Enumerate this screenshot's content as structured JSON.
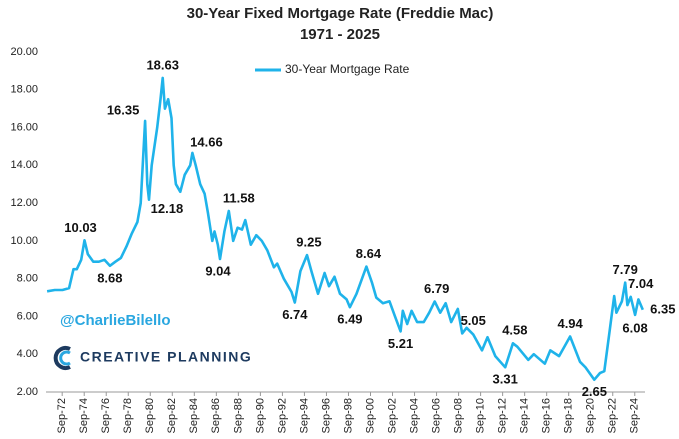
{
  "chart_data": {
    "type": "line",
    "title": "30-Year Fixed Mortgage Rate (Freddie Mac)",
    "subtitle": "1971 - 2025",
    "watermark": "@CharlieBilello",
    "logo_text": "CREATIVE PLANNING",
    "x": [
      1971.3,
      1972.0,
      1972.7,
      1973.3,
      1973.7,
      1974.0,
      1974.4,
      1974.7,
      1975.0,
      1975.5,
      1976.0,
      1976.5,
      1977.0,
      1977.5,
      1978.0,
      1978.5,
      1979.0,
      1979.5,
      1979.8,
      1980.2,
      1980.4,
      1980.55,
      1980.8,
      1981.0,
      1981.3,
      1981.6,
      1981.8,
      1982.0,
      1982.3,
      1982.6,
      1982.8,
      1983.0,
      1983.4,
      1983.8,
      1984.3,
      1984.5,
      1984.8,
      1985.2,
      1985.6,
      1985.9,
      1986.3,
      1986.5,
      1986.8,
      1987.0,
      1987.4,
      1987.8,
      1988.2,
      1988.6,
      1989.0,
      1989.3,
      1989.8,
      1990.3,
      1990.8,
      1991.3,
      1991.9,
      1992.2,
      1992.8,
      1993.5,
      1993.8,
      1994.3,
      1994.9,
      1995.3,
      1995.9,
      1996.5,
      1996.9,
      1997.4,
      1997.9,
      1998.5,
      1998.8,
      1999.4,
      2000.3,
      2000.8,
      2001.2,
      2001.8,
      2002.4,
      2002.9,
      2003.4,
      2003.6,
      2004.0,
      2004.4,
      2004.9,
      2005.5,
      2006.0,
      2006.5,
      2007.0,
      2007.5,
      2008.0,
      2008.6,
      2009.0,
      2009.4,
      2010.0,
      2010.8,
      2011.3,
      2012.0,
      2012.9,
      2013.6,
      2014.0,
      2015.0,
      2015.5,
      2016.5,
      2017.0,
      2017.8,
      2018.8,
      2019.7,
      2020.2,
      2021.0,
      2021.5,
      2021.9,
      2022.4,
      2022.8,
      2023.0,
      2023.5,
      2023.8,
      2024.0,
      2024.3,
      2024.7,
      2025.0,
      2025.4
    ],
    "series": [
      {
        "name": "30-Year Mortgage Rate",
        "color": "#1fb3ea",
        "values": [
          7.33,
          7.4,
          7.4,
          7.5,
          8.5,
          8.5,
          9.0,
          10.03,
          9.3,
          8.9,
          8.9,
          9.0,
          8.68,
          8.9,
          9.1,
          9.7,
          10.4,
          11.0,
          12.0,
          16.35,
          13.0,
          12.18,
          14.0,
          14.8,
          16.0,
          17.5,
          18.63,
          17.0,
          17.5,
          16.5,
          14.0,
          13.0,
          12.6,
          13.5,
          14.0,
          14.66,
          14.0,
          13.0,
          12.5,
          11.5,
          10.0,
          10.5,
          9.8,
          9.04,
          10.5,
          11.58,
          10.0,
          10.7,
          10.6,
          11.1,
          9.8,
          10.3,
          10.0,
          9.5,
          8.6,
          8.8,
          8.0,
          7.3,
          6.74,
          8.4,
          9.25,
          8.4,
          7.2,
          8.3,
          7.6,
          8.1,
          7.2,
          6.9,
          6.49,
          7.2,
          8.64,
          7.8,
          7.0,
          6.7,
          6.8,
          6.0,
          5.21,
          6.3,
          5.6,
          6.3,
          5.7,
          5.7,
          6.2,
          6.79,
          6.2,
          6.7,
          5.7,
          6.4,
          5.1,
          5.4,
          5.05,
          4.2,
          4.9,
          3.9,
          3.31,
          4.58,
          4.4,
          3.7,
          4.0,
          3.5,
          4.2,
          3.9,
          4.94,
          3.6,
          3.3,
          2.65,
          3.0,
          3.1,
          5.3,
          7.08,
          6.2,
          6.8,
          7.79,
          6.6,
          7.04,
          6.08,
          6.9,
          6.35
        ]
      }
    ],
    "annotations": [
      {
        "x": 1974.7,
        "value": 10.03
      },
      {
        "x": 1977.0,
        "value": 8.68
      },
      {
        "x": 1980.2,
        "value": 16.35
      },
      {
        "x": 1980.55,
        "value": 12.18
      },
      {
        "x": 1981.8,
        "value": 18.63
      },
      {
        "x": 1984.5,
        "value": 14.66
      },
      {
        "x": 1987.0,
        "value": 9.04
      },
      {
        "x": 1987.8,
        "value": 11.58
      },
      {
        "x": 1993.8,
        "value": 6.74
      },
      {
        "x": 1994.9,
        "value": 9.25
      },
      {
        "x": 1998.8,
        "value": 6.49
      },
      {
        "x": 2000.3,
        "value": 8.64
      },
      {
        "x": 2003.4,
        "value": 5.21
      },
      {
        "x": 2006.5,
        "value": 6.79
      },
      {
        "x": 2010.0,
        "value": 5.05
      },
      {
        "x": 2012.9,
        "value": 3.31
      },
      {
        "x": 2013.6,
        "value": 4.58
      },
      {
        "x": 2018.8,
        "value": 4.94
      },
      {
        "x": 2021.0,
        "value": 2.65
      },
      {
        "x": 2023.8,
        "value": 7.79
      },
      {
        "x": 2024.3,
        "value": 7.04
      },
      {
        "x": 2024.7,
        "value": 6.08
      },
      {
        "x": 2025.4,
        "value": 6.35
      }
    ],
    "xlim": [
      1971.2,
      2025.6
    ],
    "ylim": [
      2,
      20
    ],
    "yticks": [
      {
        "value": 2,
        "label": "2.00"
      },
      {
        "value": 4,
        "label": "4.00"
      },
      {
        "value": 6,
        "label": "6.00"
      },
      {
        "value": 8,
        "label": "8.00"
      },
      {
        "value": 10,
        "label": "10.00"
      },
      {
        "value": 12,
        "label": "12.00"
      },
      {
        "value": 14,
        "label": "14.00"
      },
      {
        "value": 16,
        "label": "16.00"
      },
      {
        "value": 18,
        "label": "18.00"
      },
      {
        "value": 20,
        "label": "20.00"
      }
    ],
    "xticks": [
      {
        "value": 1972.67,
        "label": "Sep-72"
      },
      {
        "value": 1974.67,
        "label": "Sep-74"
      },
      {
        "value": 1976.67,
        "label": "Sep-76"
      },
      {
        "value": 1978.67,
        "label": "Sep-78"
      },
      {
        "value": 1980.67,
        "label": "Sep-80"
      },
      {
        "value": 1982.67,
        "label": "Sep-82"
      },
      {
        "value": 1984.67,
        "label": "Sep-84"
      },
      {
        "value": 1986.67,
        "label": "Sep-86"
      },
      {
        "value": 1988.67,
        "label": "Sep-88"
      },
      {
        "value": 1990.67,
        "label": "Sep-90"
      },
      {
        "value": 1992.67,
        "label": "Sep-92"
      },
      {
        "value": 1994.67,
        "label": "Sep-94"
      },
      {
        "value": 1996.67,
        "label": "Sep-96"
      },
      {
        "value": 1998.67,
        "label": "Sep-98"
      },
      {
        "value": 2000.67,
        "label": "Sep-00"
      },
      {
        "value": 2002.67,
        "label": "Sep-02"
      },
      {
        "value": 2004.67,
        "label": "Sep-04"
      },
      {
        "value": 2006.67,
        "label": "Sep-06"
      },
      {
        "value": 2008.67,
        "label": "Sep-08"
      },
      {
        "value": 2010.67,
        "label": "Sep-10"
      },
      {
        "value": 2012.67,
        "label": "Sep-12"
      },
      {
        "value": 2014.67,
        "label": "Sep-14"
      },
      {
        "value": 2016.67,
        "label": "Sep-16"
      },
      {
        "value": 2018.67,
        "label": "Sep-18"
      },
      {
        "value": 2020.67,
        "label": "Sep-20"
      },
      {
        "value": 2022.67,
        "label": "Sep-22"
      },
      {
        "value": 2024.67,
        "label": "Sep-24"
      }
    ],
    "grid": false,
    "legend": "top"
  }
}
